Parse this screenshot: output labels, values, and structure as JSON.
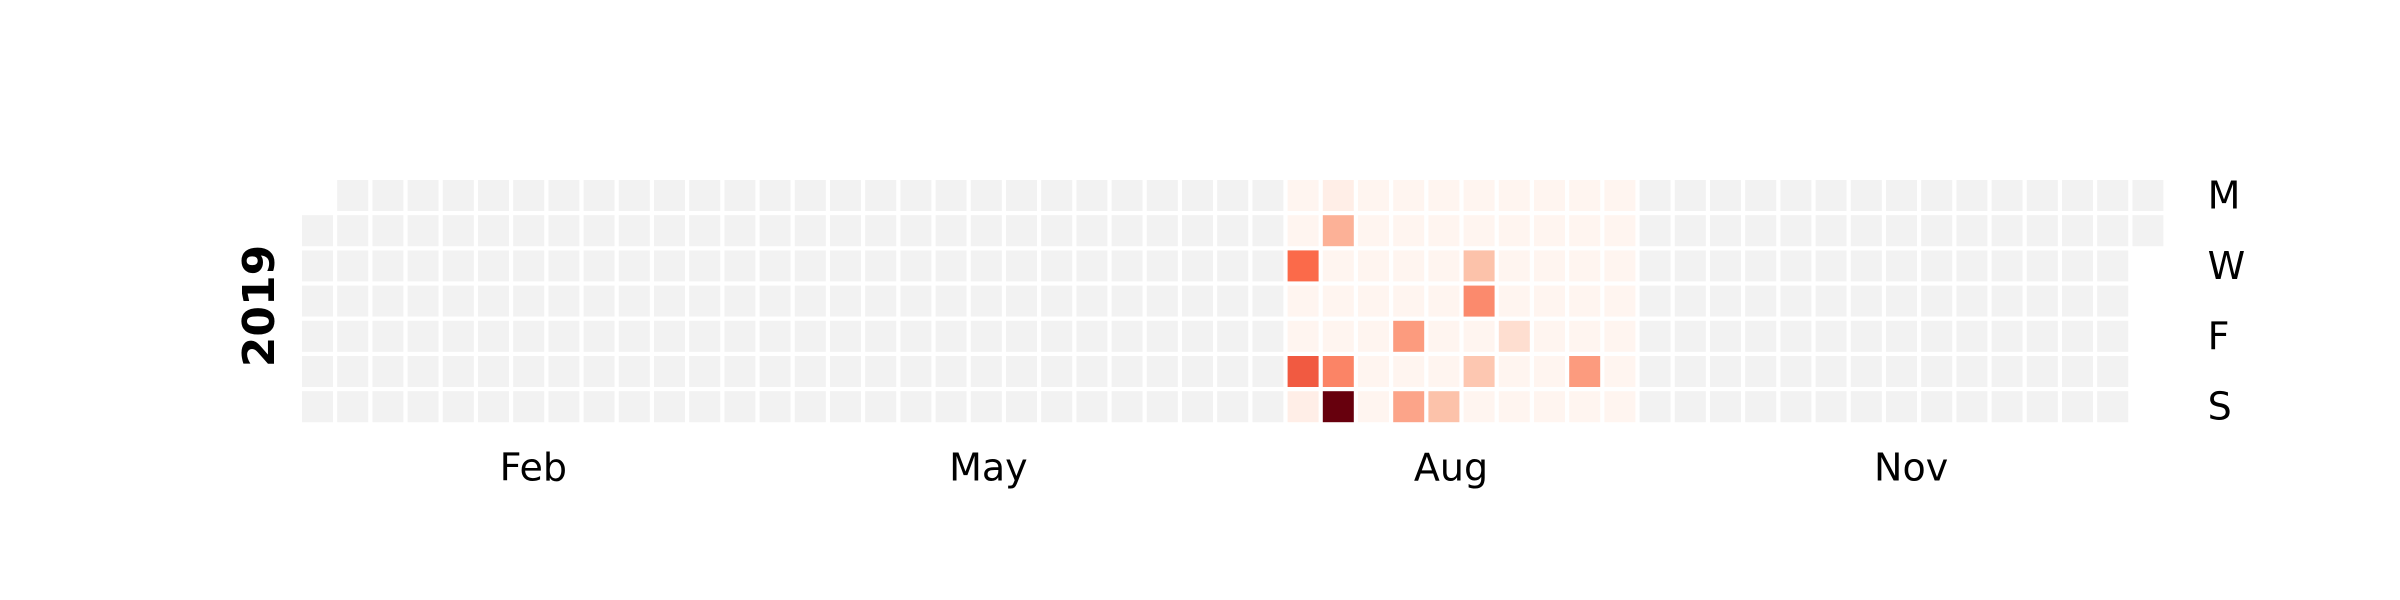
{
  "chart_data": {
    "type": "heatmap",
    "year": "2019",
    "first_weekday_row": 1,
    "weeks": 53,
    "days_in_year": 365,
    "weekday_labels": [
      {
        "label": "M",
        "row": 0
      },
      {
        "label": "W",
        "row": 2
      },
      {
        "label": "F",
        "row": 4
      },
      {
        "label": "S",
        "row": 6
      }
    ],
    "month_labels": [
      {
        "label": "Feb",
        "month": 2
      },
      {
        "label": "May",
        "month": 5
      },
      {
        "label": "Aug",
        "month": 8
      },
      {
        "label": "Nov",
        "month": 11
      }
    ],
    "empty_color": "#f2f2f2",
    "color_scale": [
      "#fff5f0",
      "#fcbba1",
      "#fb6a4a",
      "#cb181d",
      "#67000d"
    ],
    "value_range": [
      0,
      10
    ],
    "active_weeks": [
      28,
      37
    ],
    "values": [
      {
        "week": 28,
        "day": 2,
        "value": 5
      },
      {
        "week": 28,
        "day": 5,
        "value": 5.5
      },
      {
        "week": 28,
        "day": 6,
        "value": 0.3
      },
      {
        "week": 29,
        "day": 0,
        "value": 0.3
      },
      {
        "week": 29,
        "day": 1,
        "value": 2.8
      },
      {
        "week": 29,
        "day": 5,
        "value": 4.2
      },
      {
        "week": 29,
        "day": 6,
        "value": 10
      },
      {
        "week": 31,
        "day": 4,
        "value": 3.5
      },
      {
        "week": 31,
        "day": 6,
        "value": 3.2
      },
      {
        "week": 32,
        "day": 6,
        "value": 2.2
      },
      {
        "week": 33,
        "day": 2,
        "value": 2.2
      },
      {
        "week": 33,
        "day": 3,
        "value": 4.0
      },
      {
        "week": 33,
        "day": 5,
        "value": 2.0
      },
      {
        "week": 34,
        "day": 4,
        "value": 1.0
      },
      {
        "week": 36,
        "day": 5,
        "value": 3.5
      }
    ]
  }
}
